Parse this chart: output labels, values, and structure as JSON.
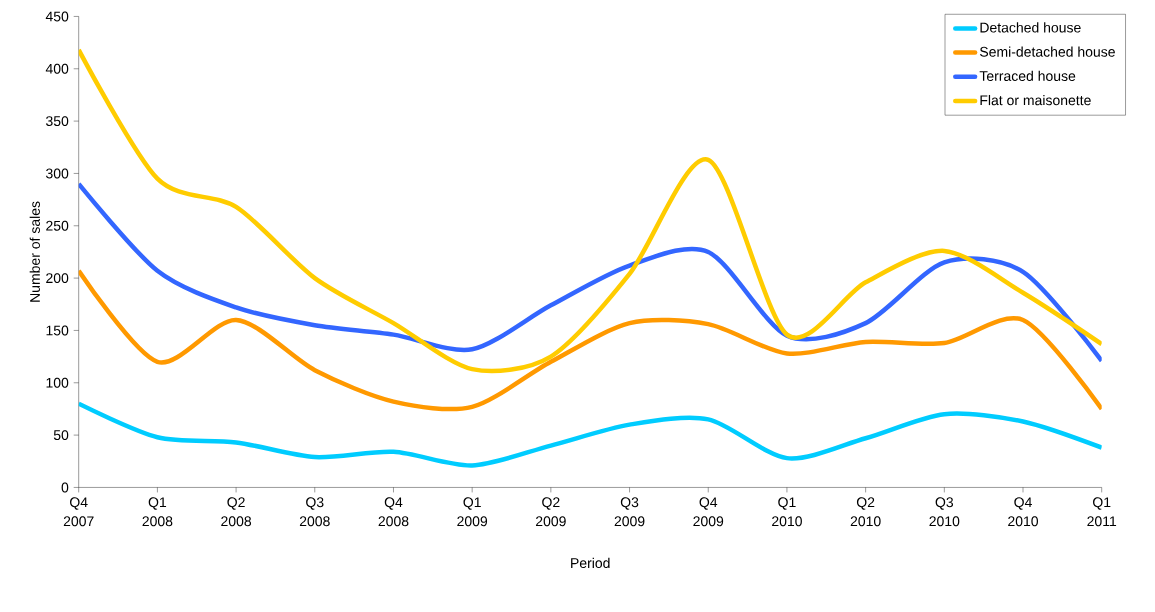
{
  "chart_data": {
    "type": "line",
    "xlabel": "Period",
    "ylabel": "Number of sales",
    "categories": [
      "Q4 2007",
      "Q1 2008",
      "Q2 2008",
      "Q3 2008",
      "Q4 2008",
      "Q1 2009",
      "Q2 2009",
      "Q3 2009",
      "Q4 2009",
      "Q1 2010",
      "Q2 2010",
      "Q3 2010",
      "Q4 2010",
      "Q1 2011"
    ],
    "series": [
      {
        "name": "Detached house",
        "color": "#00ccff",
        "values": [
          80,
          48,
          43,
          29,
          34,
          21,
          40,
          60,
          65,
          28,
          47,
          70,
          63,
          38
        ]
      },
      {
        "name": "Semi-detached house",
        "color": "#ff9900",
        "values": [
          207,
          120,
          160,
          112,
          82,
          77,
          120,
          157,
          156,
          128,
          139,
          138,
          160,
          75
        ]
      },
      {
        "name": "Terraced house",
        "color": "#3366ff",
        "values": [
          290,
          207,
          172,
          155,
          146,
          132,
          174,
          212,
          225,
          145,
          157,
          215,
          206,
          121
        ]
      },
      {
        "name": "Flat or maisonette",
        "color": "#ffcc00",
        "values": [
          418,
          295,
          268,
          200,
          157,
          113,
          125,
          204,
          313,
          146,
          196,
          226,
          186,
          137
        ]
      }
    ],
    "ylim": [
      0,
      450
    ],
    "yticks": [
      0,
      50,
      100,
      150,
      200,
      250,
      300,
      350,
      400,
      450
    ],
    "grid": false,
    "legend": "top right",
    "marker": "none",
    "line_style": "solid"
  }
}
